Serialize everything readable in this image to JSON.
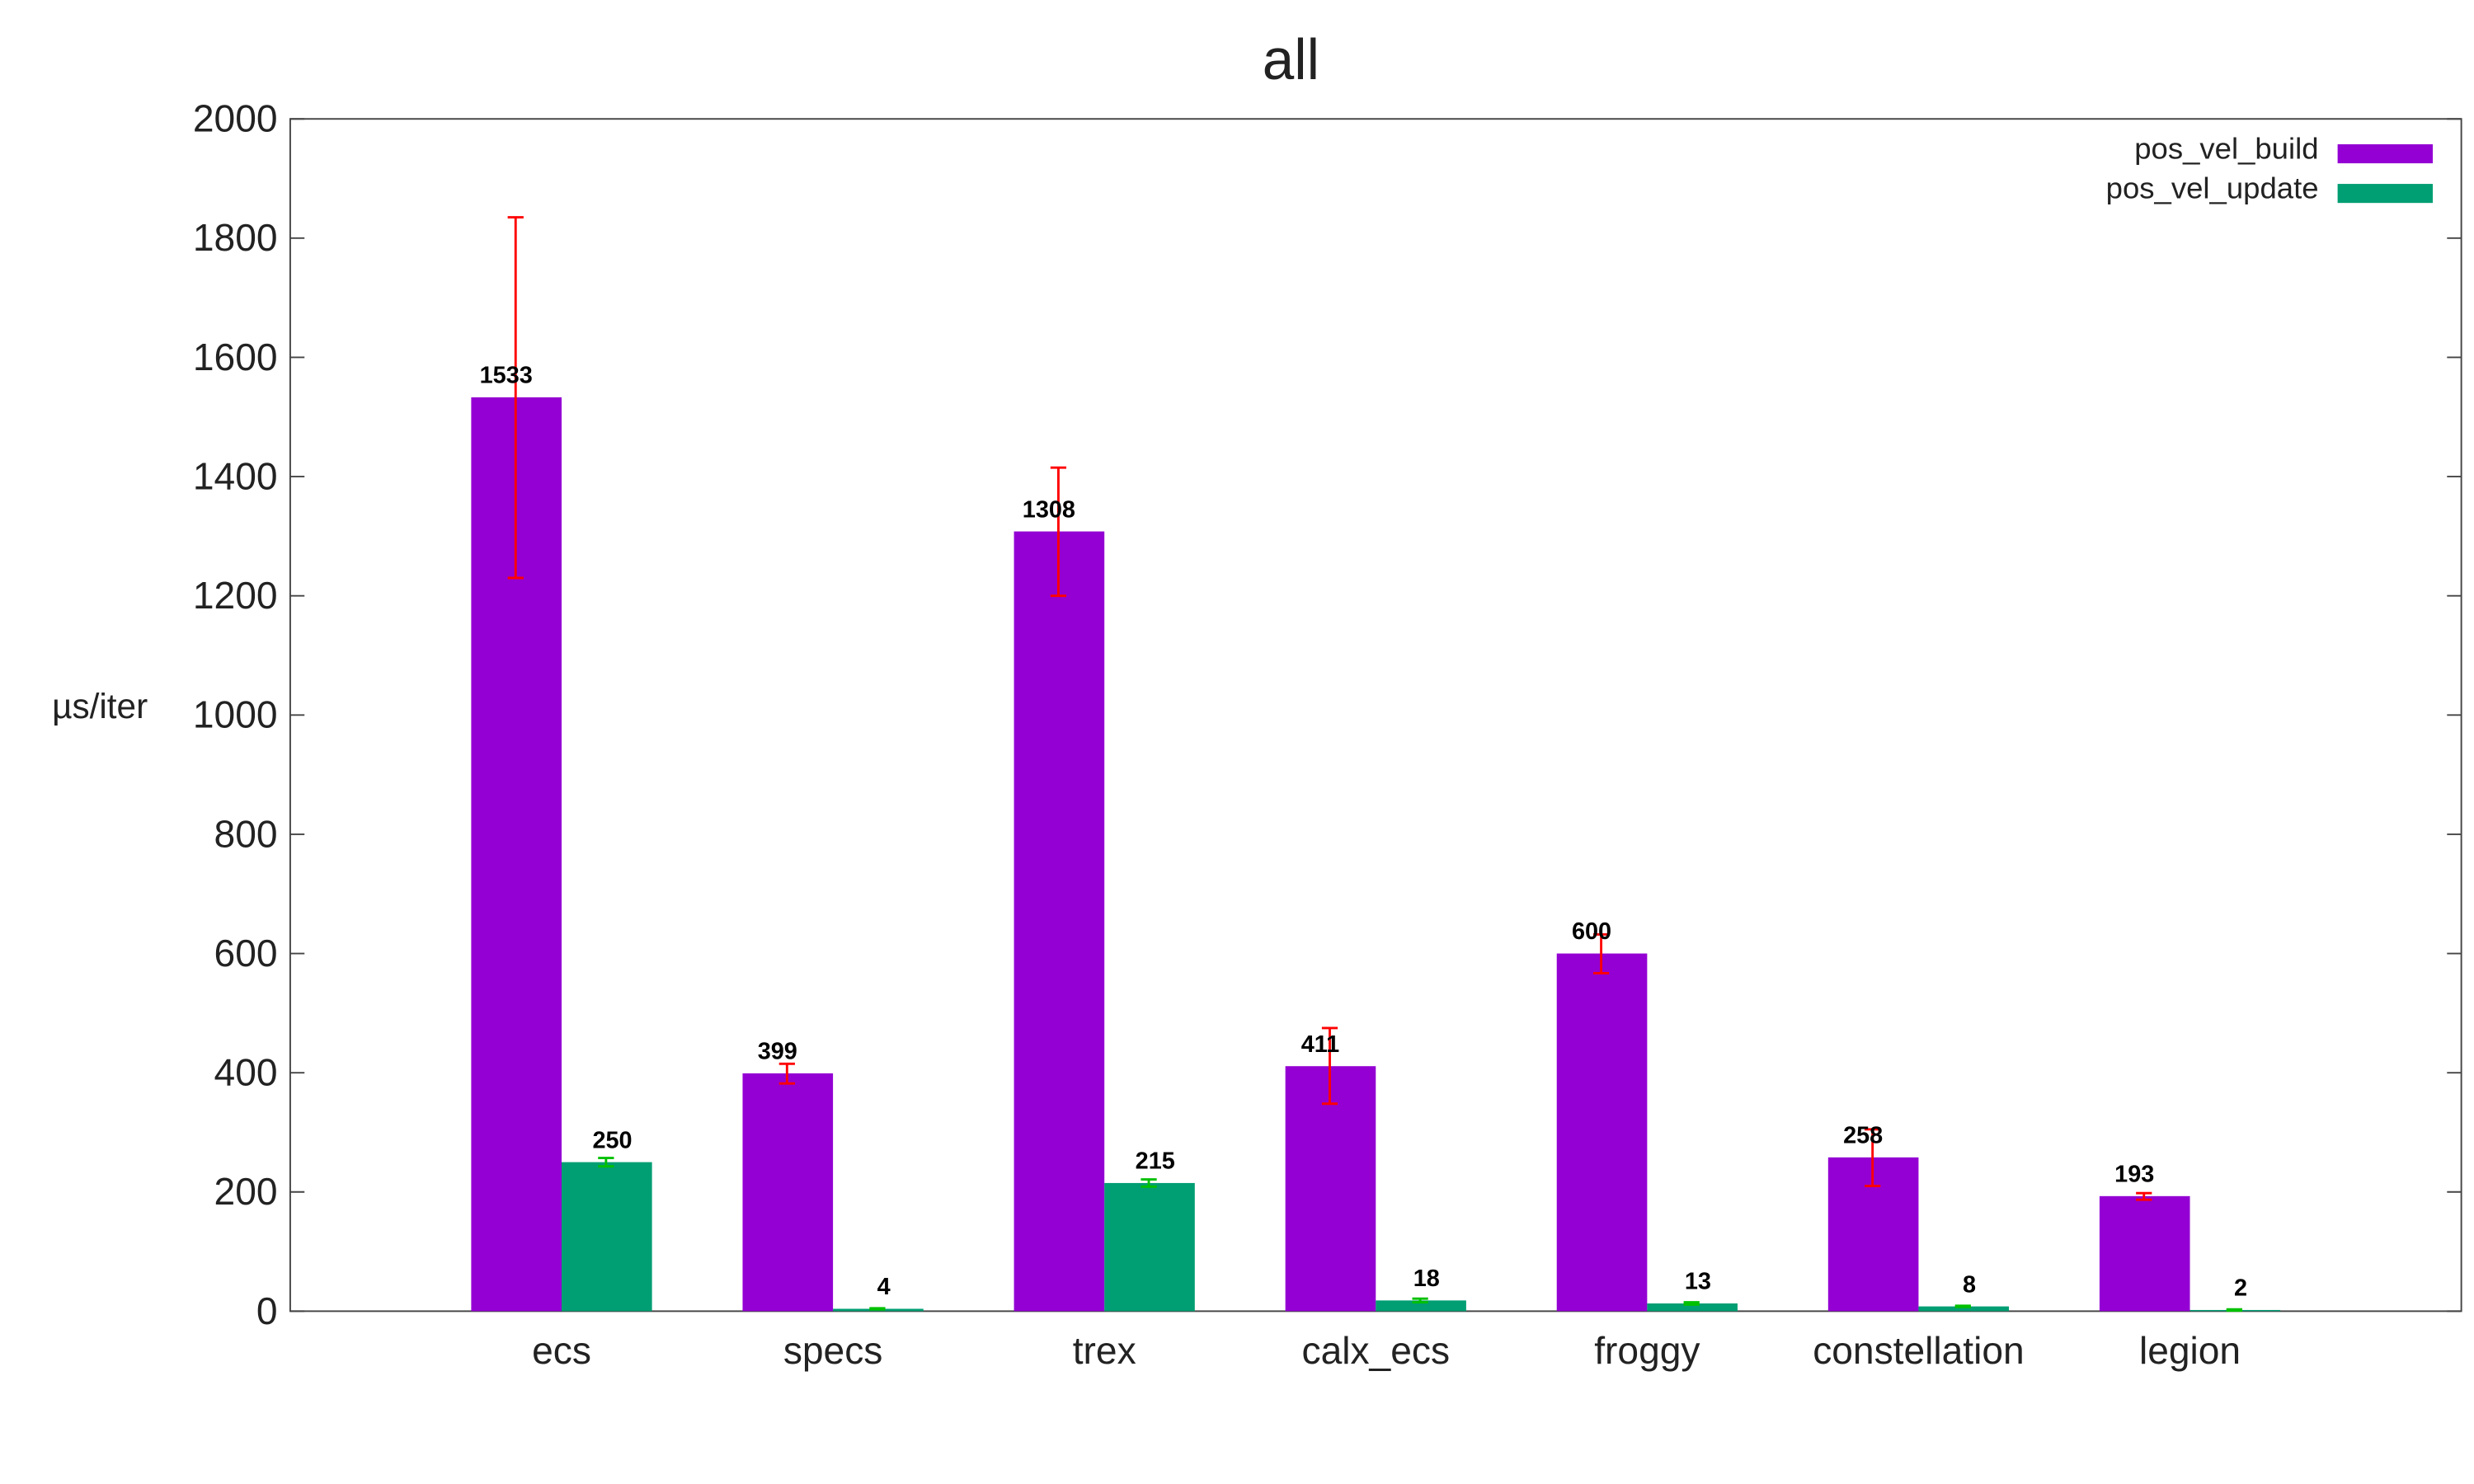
{
  "chart_data": {
    "type": "bar",
    "title": "all",
    "ylabel": "µs/iter",
    "xlabel": "",
    "ylim": [
      0,
      2000
    ],
    "yticks": [
      0,
      200,
      400,
      600,
      800,
      1000,
      1200,
      1400,
      1600,
      1800,
      2000
    ],
    "grid": false,
    "legend_position": "top-right",
    "categories": [
      "ecs",
      "specs",
      "trex",
      "calx_ecs",
      "froggy",
      "constellation",
      "legion"
    ],
    "series": [
      {
        "name": "pos_vel_build",
        "color": "#9400d3",
        "error_color": "#ff0000",
        "values": [
          1533,
          399,
          1308,
          411,
          600,
          258,
          193
        ],
        "error_low": [
          1230,
          382,
          1200,
          348,
          567,
          210,
          187
        ],
        "error_high": [
          1835,
          415,
          1415,
          475,
          632,
          305,
          198
        ]
      },
      {
        "name": "pos_vel_update",
        "color": "#009e73",
        "error_color": "#00c000",
        "values": [
          250,
          4,
          215,
          18,
          13,
          8,
          2
        ],
        "error_low": [
          243,
          3,
          209,
          15,
          11,
          7,
          1
        ],
        "error_high": [
          257,
          5,
          221,
          21,
          15,
          9,
          3
        ]
      }
    ]
  }
}
